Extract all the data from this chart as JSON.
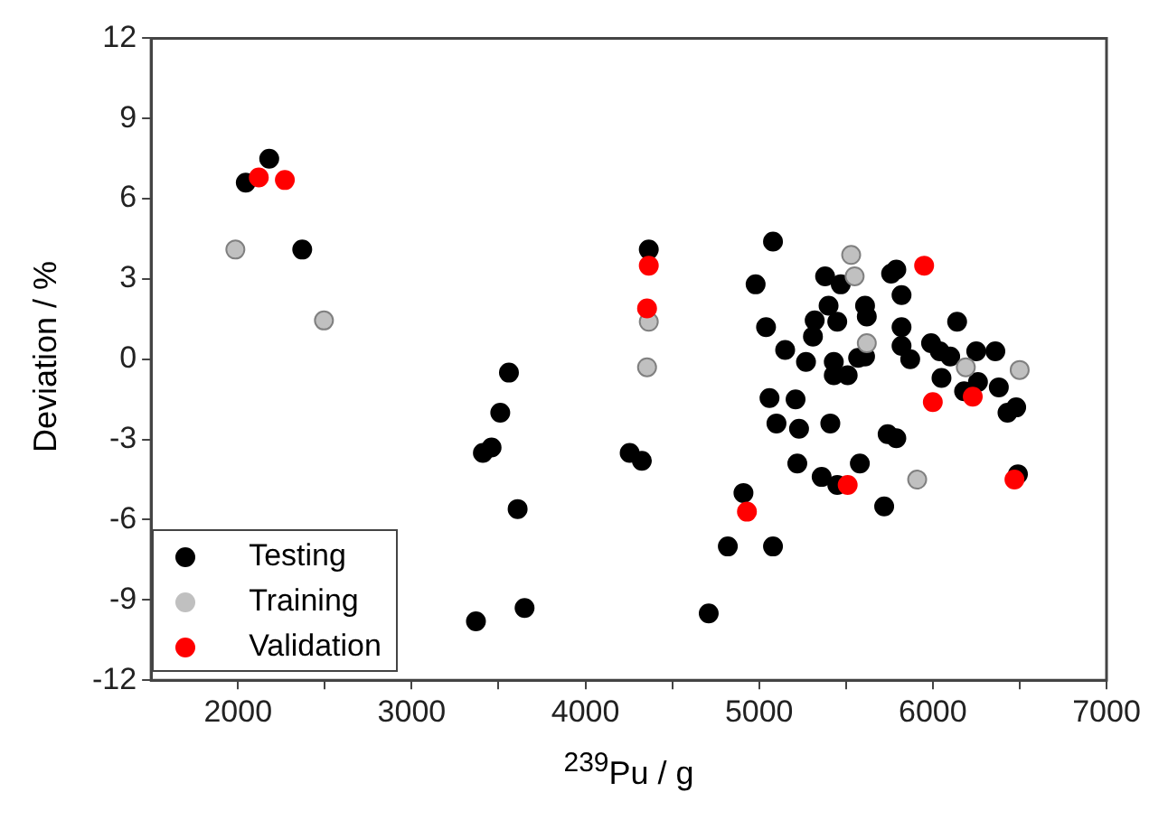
{
  "chart_data": {
    "type": "scatter",
    "xlabel": "$^{239}$Pu / g",
    "ylabel": "Deviation / %",
    "xlim": [
      1500,
      7000
    ],
    "xticks": [
      2000,
      {
        "value": 2500,
        "label": null
      },
      3000,
      {
        "value": 3500,
        "label": null
      },
      4000,
      {
        "value": 4500,
        "label": null
      },
      5000,
      {
        "value": 5500,
        "label": null
      },
      6000,
      {
        "value": 6500,
        "label": null
      },
      7000
    ],
    "ylim": [
      -12,
      12
    ],
    "yticks": [
      -12,
      -9,
      -6,
      -3,
      0,
      3,
      6,
      9,
      12
    ],
    "grid": false,
    "legend": "bottom left",
    "marker": "circle",
    "series": [
      {
        "name": "Testing",
        "color": "#000000",
        "x": [
          2045,
          2180,
          2370,
          4365,
          3560,
          3510,
          3410,
          3460,
          4255,
          4325,
          3610,
          3650,
          3370,
          5080,
          4980,
          5040,
          5060,
          5210,
          5100,
          5230,
          5410,
          5220,
          5360,
          5450,
          5580,
          5720,
          5740,
          4910,
          4820,
          5080,
          4710,
          5150,
          5270,
          5430,
          5430,
          5510,
          5570,
          5310,
          5320,
          5400,
          5450,
          5610,
          5620,
          5380,
          5470,
          5760,
          5790,
          5820,
          5820,
          6140,
          5820,
          5990,
          6040,
          6100,
          5870,
          5610,
          6250,
          6360,
          6050,
          6260,
          6380,
          6180,
          6430,
          6480,
          5790,
          6490
        ],
        "values": [
          6.6,
          7.5,
          4.1,
          4.1,
          -0.5,
          -2.0,
          -3.5,
          -3.3,
          -3.5,
          -3.8,
          -5.6,
          -9.3,
          -9.8,
          4.4,
          2.8,
          1.2,
          -1.45,
          -1.5,
          -2.4,
          -2.6,
          -2.4,
          -3.9,
          -4.4,
          -4.7,
          -3.9,
          -5.5,
          -2.8,
          -5.0,
          -7.0,
          -7.0,
          -9.5,
          0.35,
          -0.1,
          -0.1,
          -0.6,
          -0.6,
          0.05,
          0.85,
          1.45,
          2.0,
          1.4,
          2.0,
          1.6,
          3.1,
          2.8,
          3.2,
          3.35,
          2.4,
          1.2,
          1.4,
          0.5,
          0.6,
          0.3,
          0.1,
          0.0,
          0.1,
          0.3,
          0.3,
          -0.7,
          -0.85,
          -1.05,
          -1.2,
          -2.0,
          -1.8,
          -2.95,
          -4.3
        ]
      },
      {
        "name": "Training",
        "color": "#c0c0c0",
        "x": [
          1985,
          2495,
          4365,
          4355,
          5530,
          5550,
          5620,
          6190,
          6500,
          5910
        ],
        "values": [
          4.1,
          1.45,
          1.4,
          -0.3,
          3.9,
          3.1,
          0.6,
          -0.3,
          -0.4,
          -4.5
        ]
      },
      {
        "name": "Validation",
        "color": "#ff0000",
        "x": [
          2120,
          2270,
          4365,
          4355,
          4930,
          5510,
          5950,
          6000,
          6230,
          6470
        ],
        "values": [
          6.8,
          6.7,
          3.5,
          1.9,
          -5.7,
          -4.7,
          3.5,
          -1.6,
          -1.4,
          -4.5
        ]
      }
    ]
  }
}
